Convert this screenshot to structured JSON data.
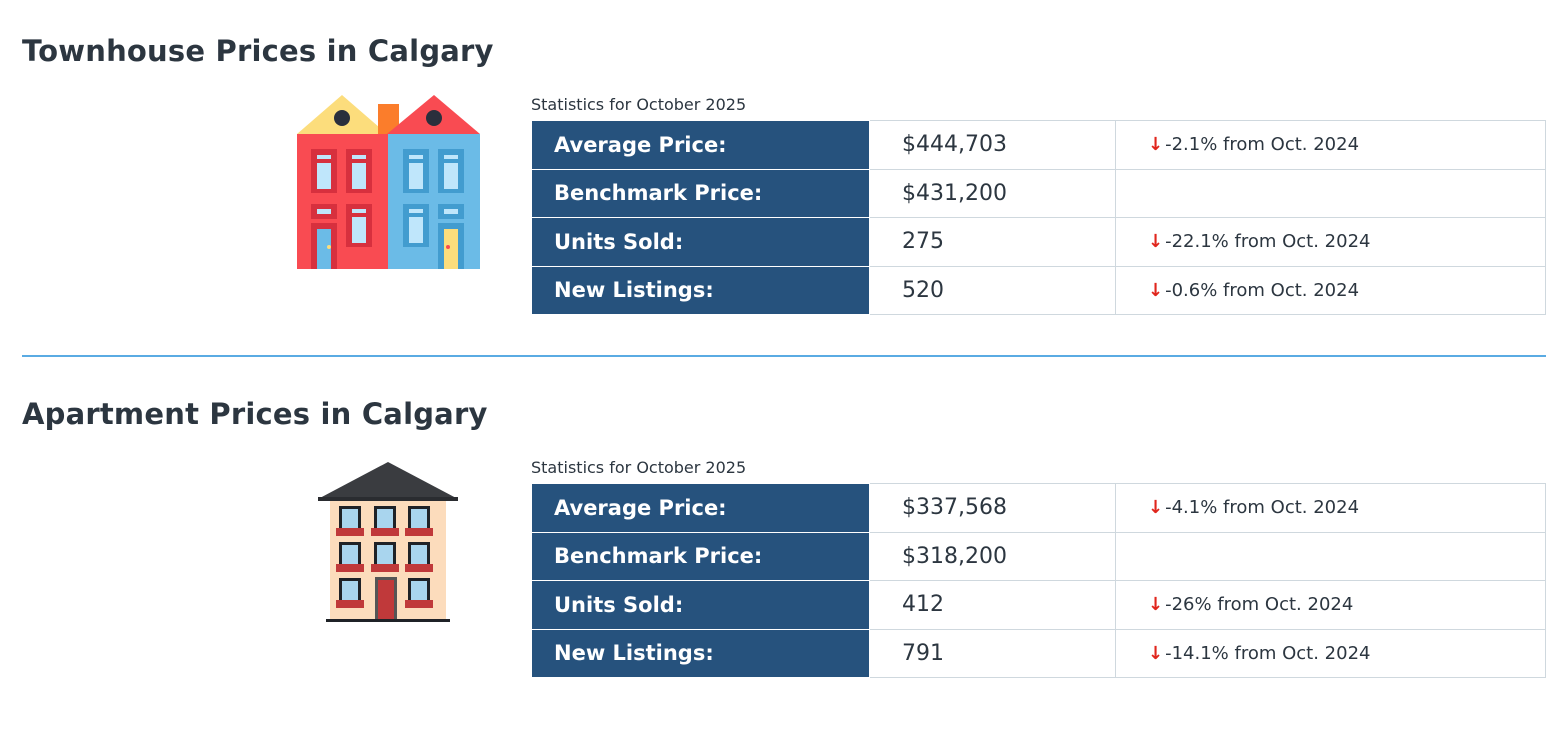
{
  "sections": [
    {
      "title": "Townhouse Prices in Calgary",
      "caption": "Statistics for October 2025",
      "icon": "townhouse-icon",
      "rows": [
        {
          "label": "Average Price:",
          "value": "$444,703",
          "change": "-2.1% from Oct. 2024",
          "direction": "down"
        },
        {
          "label": "Benchmark Price:",
          "value": "$431,200",
          "change": "",
          "direction": ""
        },
        {
          "label": "Units Sold:",
          "value": "275",
          "change": "-22.1% from Oct. 2024",
          "direction": "down"
        },
        {
          "label": "New Listings:",
          "value": "520",
          "change": "-0.6% from Oct. 2024",
          "direction": "down"
        }
      ]
    },
    {
      "title": "Apartment Prices in Calgary",
      "caption": "Statistics for October 2025",
      "icon": "apartment-icon",
      "rows": [
        {
          "label": "Average Price:",
          "value": "$337,568",
          "change": "-4.1% from Oct. 2024",
          "direction": "down"
        },
        {
          "label": "Benchmark Price:",
          "value": "$318,200",
          "change": "",
          "direction": ""
        },
        {
          "label": "Units Sold:",
          "value": "412",
          "change": "-26% from Oct. 2024",
          "direction": "down"
        },
        {
          "label": "New Listings:",
          "value": "791",
          "change": "-14.1% from Oct. 2024",
          "direction": "down"
        }
      ]
    }
  ],
  "arrow_glyph": "↓",
  "colors": {
    "label_bg": "#26527d",
    "down": "#e0261d",
    "divider": "#5aabe3"
  }
}
